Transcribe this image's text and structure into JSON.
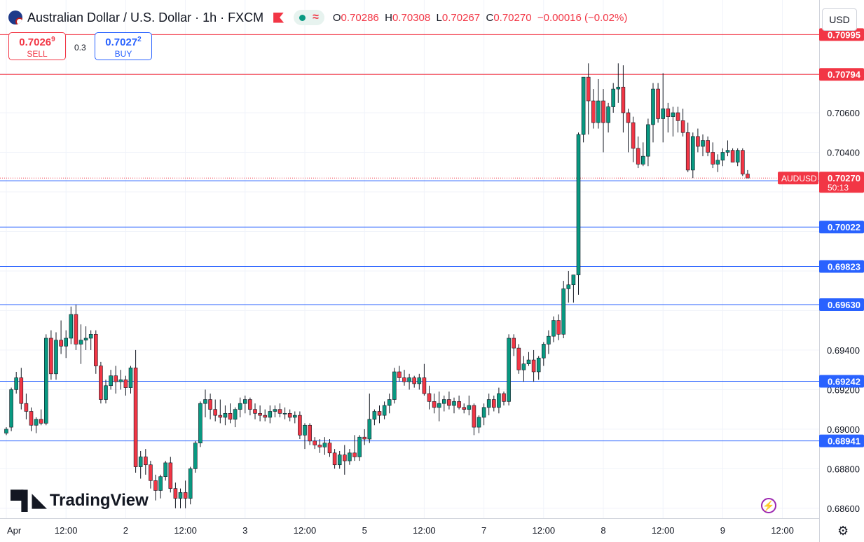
{
  "header": {
    "title": "Australian Dollar / U.S. Dollar · 1h · FXCM",
    "ohlc": {
      "o_label": "O",
      "o": "0.70286",
      "h_label": "H",
      "h": "0.70308",
      "l_label": "L",
      "l": "0.70267",
      "c_label": "C",
      "c": "0.70270",
      "change": "−0.00016 (−0.02%)"
    }
  },
  "trade": {
    "sell_price": "0.7026",
    "sell_sup": "9",
    "sell_label": "SELL",
    "buy_price": "0.7027",
    "buy_sup": "2",
    "buy_label": "BUY",
    "spread": "0.3"
  },
  "currency": "USD",
  "branding": "TradingView",
  "colors": {
    "up": "#089981",
    "down": "#f23645",
    "resistance": "#f23645",
    "support": "#2962ff",
    "price_tag": "#f23645"
  },
  "chart_data": {
    "type": "candlestick",
    "symbol": "AUDUSD",
    "timeframe": "1h",
    "ylim": [
      0.6855,
      0.7117
    ],
    "y_ticks": [
      "0.70600",
      "0.70400",
      "0.69400",
      "0.69200",
      "0.69000",
      "0.68800",
      "0.68600"
    ],
    "x_ticks": [
      "Apr",
      "12:00",
      "2",
      "12:00",
      "3",
      "12:00",
      "5",
      "12:00",
      "7",
      "12:00",
      "8",
      "12:00",
      "9",
      "12:00"
    ],
    "x_tick_index": [
      0,
      12,
      24,
      36,
      48,
      60,
      72,
      84,
      96,
      108,
      120,
      132,
      144,
      156
    ],
    "current": {
      "label": "AUDUSD",
      "price": "0.70270",
      "countdown": "50:13",
      "value": 0.7027
    },
    "resistance_lines": [
      {
        "value": 0.70995,
        "label": "0.70995"
      },
      {
        "value": 0.70794,
        "label": "0.70794"
      }
    ],
    "support_lines": [
      {
        "value": 0.70256,
        "label": "0.70256"
      },
      {
        "value": 0.70022,
        "label": "0.70022"
      },
      {
        "value": 0.69823,
        "label": "0.69823"
      },
      {
        "value": 0.6963,
        "label": "0.69630"
      },
      {
        "value": 0.69242,
        "label": "0.69242"
      },
      {
        "value": 0.68941,
        "label": "0.68941"
      }
    ],
    "candles": [
      [
        0.6898,
        0.6901,
        0.6897,
        0.69
      ],
      [
        0.6901,
        0.6921,
        0.6899,
        0.692
      ],
      [
        0.692,
        0.6929,
        0.6918,
        0.6926
      ],
      [
        0.6926,
        0.6931,
        0.691,
        0.6913
      ],
      [
        0.6913,
        0.6918,
        0.6905,
        0.6909
      ],
      [
        0.6909,
        0.6911,
        0.6899,
        0.6902
      ],
      [
        0.6902,
        0.6906,
        0.6898,
        0.6905
      ],
      [
        0.6905,
        0.691,
        0.6902,
        0.6903
      ],
      [
        0.6903,
        0.6948,
        0.6902,
        0.6946
      ],
      [
        0.6946,
        0.695,
        0.6925,
        0.6928
      ],
      [
        0.6928,
        0.6949,
        0.6925,
        0.6945
      ],
      [
        0.6945,
        0.6955,
        0.6938,
        0.6942
      ],
      [
        0.6942,
        0.695,
        0.6936,
        0.6946
      ],
      [
        0.6946,
        0.6962,
        0.6943,
        0.6958
      ],
      [
        0.6958,
        0.6963,
        0.694,
        0.6943
      ],
      [
        0.6943,
        0.6953,
        0.6933,
        0.6945
      ],
      [
        0.6945,
        0.6952,
        0.694,
        0.6946
      ],
      [
        0.6946,
        0.695,
        0.694,
        0.6948
      ],
      [
        0.6948,
        0.695,
        0.6928,
        0.6932
      ],
      [
        0.6932,
        0.6934,
        0.6913,
        0.6915
      ],
      [
        0.6915,
        0.6925,
        0.6913,
        0.6922
      ],
      [
        0.6922,
        0.693,
        0.692,
        0.6927
      ],
      [
        0.6927,
        0.6932,
        0.6918,
        0.6924
      ],
      [
        0.6924,
        0.693,
        0.692,
        0.6925
      ],
      [
        0.6925,
        0.6927,
        0.6917,
        0.6921
      ],
      [
        0.6921,
        0.6932,
        0.6918,
        0.6931
      ],
      [
        0.6931,
        0.694,
        0.6878,
        0.6881
      ],
      [
        0.6881,
        0.6889,
        0.6875,
        0.6886
      ],
      [
        0.6886,
        0.689,
        0.6877,
        0.6882
      ],
      [
        0.6882,
        0.6884,
        0.687,
        0.6874
      ],
      [
        0.6874,
        0.6877,
        0.6864,
        0.6869
      ],
      [
        0.6869,
        0.6877,
        0.6865,
        0.6876
      ],
      [
        0.6876,
        0.6884,
        0.6874,
        0.6883
      ],
      [
        0.6883,
        0.6886,
        0.6868,
        0.687
      ],
      [
        0.687,
        0.6873,
        0.686,
        0.6865
      ],
      [
        0.6865,
        0.687,
        0.686,
        0.6868
      ],
      [
        0.6868,
        0.6874,
        0.686,
        0.6865
      ],
      [
        0.6865,
        0.6881,
        0.6862,
        0.688
      ],
      [
        0.688,
        0.6894,
        0.6878,
        0.6893
      ],
      [
        0.6893,
        0.6914,
        0.6891,
        0.6913
      ],
      [
        0.6913,
        0.692,
        0.6906,
        0.6915
      ],
      [
        0.6915,
        0.6918,
        0.6905,
        0.691
      ],
      [
        0.691,
        0.6915,
        0.6904,
        0.6907
      ],
      [
        0.6907,
        0.6915,
        0.6903,
        0.6906
      ],
      [
        0.6906,
        0.6912,
        0.6902,
        0.6908
      ],
      [
        0.6908,
        0.6913,
        0.6903,
        0.6905
      ],
      [
        0.6905,
        0.6911,
        0.6901,
        0.691
      ],
      [
        0.691,
        0.6916,
        0.6906,
        0.6913
      ],
      [
        0.6913,
        0.6917,
        0.6908,
        0.6915
      ],
      [
        0.6915,
        0.6916,
        0.6907,
        0.691
      ],
      [
        0.691,
        0.6913,
        0.6905,
        0.6908
      ],
      [
        0.6908,
        0.6912,
        0.6904,
        0.6907
      ],
      [
        0.6907,
        0.691,
        0.6904,
        0.6906
      ],
      [
        0.6906,
        0.6912,
        0.6903,
        0.6909
      ],
      [
        0.6909,
        0.6912,
        0.6906,
        0.691
      ],
      [
        0.691,
        0.6913,
        0.6906,
        0.6908
      ],
      [
        0.6908,
        0.6911,
        0.6905,
        0.6908
      ],
      [
        0.6908,
        0.691,
        0.6904,
        0.6906
      ],
      [
        0.6906,
        0.6909,
        0.6903,
        0.6907
      ],
      [
        0.6907,
        0.6909,
        0.6895,
        0.6897
      ],
      [
        0.6897,
        0.6903,
        0.689,
        0.6902
      ],
      [
        0.6902,
        0.6903,
        0.6892,
        0.6894
      ],
      [
        0.6894,
        0.6896,
        0.689,
        0.6892
      ],
      [
        0.6892,
        0.6895,
        0.6888,
        0.6891
      ],
      [
        0.6891,
        0.6896,
        0.6887,
        0.6893
      ],
      [
        0.6893,
        0.6895,
        0.6886,
        0.6888
      ],
      [
        0.6888,
        0.689,
        0.688,
        0.6882
      ],
      [
        0.6882,
        0.6889,
        0.688,
        0.6887
      ],
      [
        0.6887,
        0.6892,
        0.6877,
        0.6884
      ],
      [
        0.6884,
        0.689,
        0.6882,
        0.6888
      ],
      [
        0.6888,
        0.6897,
        0.6884,
        0.6886
      ],
      [
        0.6886,
        0.6897,
        0.6884,
        0.6896
      ],
      [
        0.6896,
        0.69,
        0.6892,
        0.6895
      ],
      [
        0.6895,
        0.6918,
        0.6893,
        0.6905
      ],
      [
        0.6905,
        0.691,
        0.6902,
        0.6909
      ],
      [
        0.6909,
        0.6912,
        0.6903,
        0.6907
      ],
      [
        0.6907,
        0.6914,
        0.6905,
        0.6912
      ],
      [
        0.6912,
        0.6918,
        0.6908,
        0.6915
      ],
      [
        0.6915,
        0.6931,
        0.6913,
        0.6929
      ],
      [
        0.6929,
        0.6932,
        0.6924,
        0.6926
      ],
      [
        0.6926,
        0.693,
        0.6922,
        0.6924
      ],
      [
        0.6924,
        0.6928,
        0.692,
        0.6926
      ],
      [
        0.6926,
        0.6927,
        0.6921,
        0.6923
      ],
      [
        0.6923,
        0.6928,
        0.692,
        0.6926
      ],
      [
        0.6926,
        0.6933,
        0.6917,
        0.6918
      ],
      [
        0.6918,
        0.6922,
        0.691,
        0.6914
      ],
      [
        0.6914,
        0.6918,
        0.6908,
        0.6911
      ],
      [
        0.6911,
        0.6919,
        0.6904,
        0.6913
      ],
      [
        0.6913,
        0.6917,
        0.6909,
        0.6915
      ],
      [
        0.6915,
        0.6919,
        0.691,
        0.6912
      ],
      [
        0.6912,
        0.6916,
        0.6908,
        0.6914
      ],
      [
        0.6914,
        0.6917,
        0.691,
        0.6911
      ],
      [
        0.6911,
        0.6913,
        0.6908,
        0.691
      ],
      [
        0.691,
        0.6917,
        0.6907,
        0.6912
      ],
      [
        0.6912,
        0.6913,
        0.6897,
        0.6901
      ],
      [
        0.6901,
        0.6907,
        0.6898,
        0.6906
      ],
      [
        0.6906,
        0.6913,
        0.6902,
        0.6911
      ],
      [
        0.6911,
        0.6918,
        0.6907,
        0.6915
      ],
      [
        0.6915,
        0.6917,
        0.6909,
        0.6911
      ],
      [
        0.6911,
        0.6921,
        0.6908,
        0.6918
      ],
      [
        0.6918,
        0.6919,
        0.6912,
        0.6914
      ],
      [
        0.6914,
        0.6948,
        0.6912,
        0.6946
      ],
      [
        0.6946,
        0.6948,
        0.6937,
        0.6941
      ],
      [
        0.6941,
        0.6943,
        0.6928,
        0.693
      ],
      [
        0.693,
        0.6937,
        0.6924,
        0.6933
      ],
      [
        0.6933,
        0.6939,
        0.6932,
        0.6935
      ],
      [
        0.6935,
        0.694,
        0.6924,
        0.6929
      ],
      [
        0.6929,
        0.6937,
        0.6925,
        0.6936
      ],
      [
        0.6936,
        0.6944,
        0.6932,
        0.6943
      ],
      [
        0.6943,
        0.695,
        0.6938,
        0.6947
      ],
      [
        0.6947,
        0.6957,
        0.6944,
        0.6955
      ],
      [
        0.6955,
        0.6958,
        0.6945,
        0.6948
      ],
      [
        0.6948,
        0.6975,
        0.6946,
        0.6971
      ],
      [
        0.6971,
        0.698,
        0.6964,
        0.6973
      ],
      [
        0.6973,
        0.6978,
        0.6964,
        0.6978
      ],
      [
        0.6978,
        0.705,
        0.6968,
        0.7049
      ],
      [
        0.7049,
        0.7078,
        0.7045,
        0.7078
      ],
      [
        0.7078,
        0.7085,
        0.7049,
        0.7066
      ],
      [
        0.7066,
        0.7072,
        0.7052,
        0.7055
      ],
      [
        0.7055,
        0.7077,
        0.7052,
        0.7066
      ],
      [
        0.7066,
        0.7072,
        0.704,
        0.7055
      ],
      [
        0.7055,
        0.7065,
        0.705,
        0.7063
      ],
      [
        0.7063,
        0.7075,
        0.706,
        0.7072
      ],
      [
        0.7072,
        0.7085,
        0.7065,
        0.7073
      ],
      [
        0.7073,
        0.7084,
        0.705,
        0.706
      ],
      [
        0.706,
        0.7062,
        0.704,
        0.7055
      ],
      [
        0.7055,
        0.7058,
        0.7035,
        0.7042
      ],
      [
        0.7042,
        0.7048,
        0.7032,
        0.7034
      ],
      [
        0.7034,
        0.7045,
        0.7033,
        0.7038
      ],
      [
        0.7038,
        0.7057,
        0.7033,
        0.7054
      ],
      [
        0.7054,
        0.7075,
        0.7045,
        0.7072
      ],
      [
        0.7072,
        0.7075,
        0.7055,
        0.7057
      ],
      [
        0.7057,
        0.708,
        0.7045,
        0.7062
      ],
      [
        0.7062,
        0.7065,
        0.705,
        0.7058
      ],
      [
        0.7058,
        0.7063,
        0.7048,
        0.706
      ],
      [
        0.706,
        0.7063,
        0.705,
        0.7056
      ],
      [
        0.7056,
        0.7062,
        0.7048,
        0.705
      ],
      [
        0.705,
        0.7055,
        0.703,
        0.7031
      ],
      [
        0.7031,
        0.705,
        0.7027,
        0.7048
      ],
      [
        0.7048,
        0.7052,
        0.704,
        0.7043
      ],
      [
        0.7043,
        0.7049,
        0.7038,
        0.7046
      ],
      [
        0.7046,
        0.7048,
        0.7038,
        0.704
      ],
      [
        0.704,
        0.7045,
        0.7032,
        0.7034
      ],
      [
        0.7034,
        0.7039,
        0.703,
        0.7036
      ],
      [
        0.7036,
        0.7042,
        0.7033,
        0.704
      ],
      [
        0.704,
        0.7046,
        0.7038,
        0.7041
      ],
      [
        0.7041,
        0.7042,
        0.7035,
        0.7035
      ],
      [
        0.7035,
        0.7042,
        0.7033,
        0.7041
      ],
      [
        0.7041,
        0.7042,
        0.7028,
        0.7029
      ],
      [
        0.7029,
        0.7031,
        0.7027,
        0.7027
      ]
    ]
  }
}
